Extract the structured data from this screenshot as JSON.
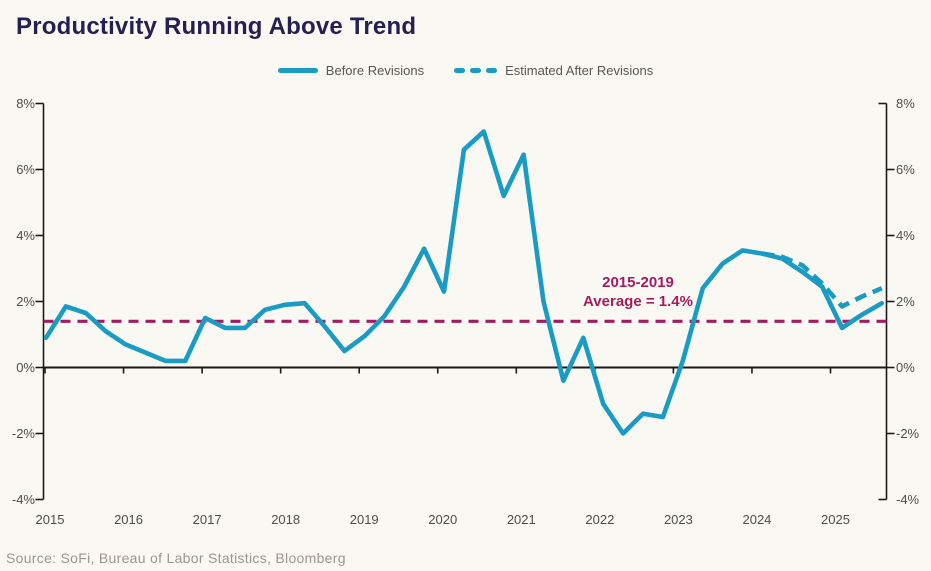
{
  "title": "Productivity Running Above Trend",
  "legend": {
    "before_label": "Before Revisions",
    "after_label": "Estimated After Revisions"
  },
  "annotation": {
    "line1": "2015-2019",
    "line2": "Average = 1.4%"
  },
  "source": "Source: SoFi, Bureau of Labor Statistics, Bloomberg",
  "colors": {
    "background": "#FAF8F2",
    "title_navy": "#262051",
    "line_teal": "#1A9BC4",
    "magenta": "#A31C60",
    "axis_text": "#4D4D4D",
    "legend_text": "#575757",
    "source_text": "#9C968E",
    "axis_line": "#1A1A1A"
  },
  "chart_data": {
    "type": "line",
    "title": "Productivity Running Above Trend",
    "frequency": "quarterly",
    "y_unit": "%",
    "ylim": [
      -4,
      8
    ],
    "grid": false,
    "legend_position": "top-center",
    "y_ticks": [
      "8%",
      "6%",
      "4%",
      "2%",
      "0%",
      "-2%",
      "-4%"
    ],
    "categories_years": [
      "2015",
      "2016",
      "2017",
      "2018",
      "2019",
      "2020",
      "2021",
      "2022",
      "2023",
      "2024",
      "2025"
    ],
    "average_line": {
      "value": 1.4,
      "style": "dashed",
      "label_line1": "2015-2019",
      "label_line2": "Average = 1.4%"
    },
    "series": [
      {
        "name": "Before Revisions",
        "style": "solid",
        "start": "2015Q1",
        "values": [
          0.9,
          1.85,
          1.65,
          1.1,
          0.7,
          0.45,
          0.2,
          0.2,
          1.5,
          1.2,
          1.2,
          1.75,
          1.9,
          1.95,
          1.25,
          0.5,
          0.95,
          1.55,
          2.45,
          3.6,
          2.3,
          6.6,
          7.15,
          5.2,
          6.45,
          2.0,
          -0.4,
          0.9,
          -1.1,
          -2.0,
          -1.4,
          -1.5,
          0.2,
          2.4,
          3.15,
          3.55,
          3.45,
          3.3,
          2.9,
          2.45,
          1.2,
          1.6,
          1.95
        ]
      },
      {
        "name": "Estimated After Revisions",
        "style": "dashed",
        "start": "2024Q1",
        "values": [
          3.45,
          3.35,
          3.1,
          2.55,
          1.85,
          2.15,
          2.4
        ]
      }
    ]
  }
}
